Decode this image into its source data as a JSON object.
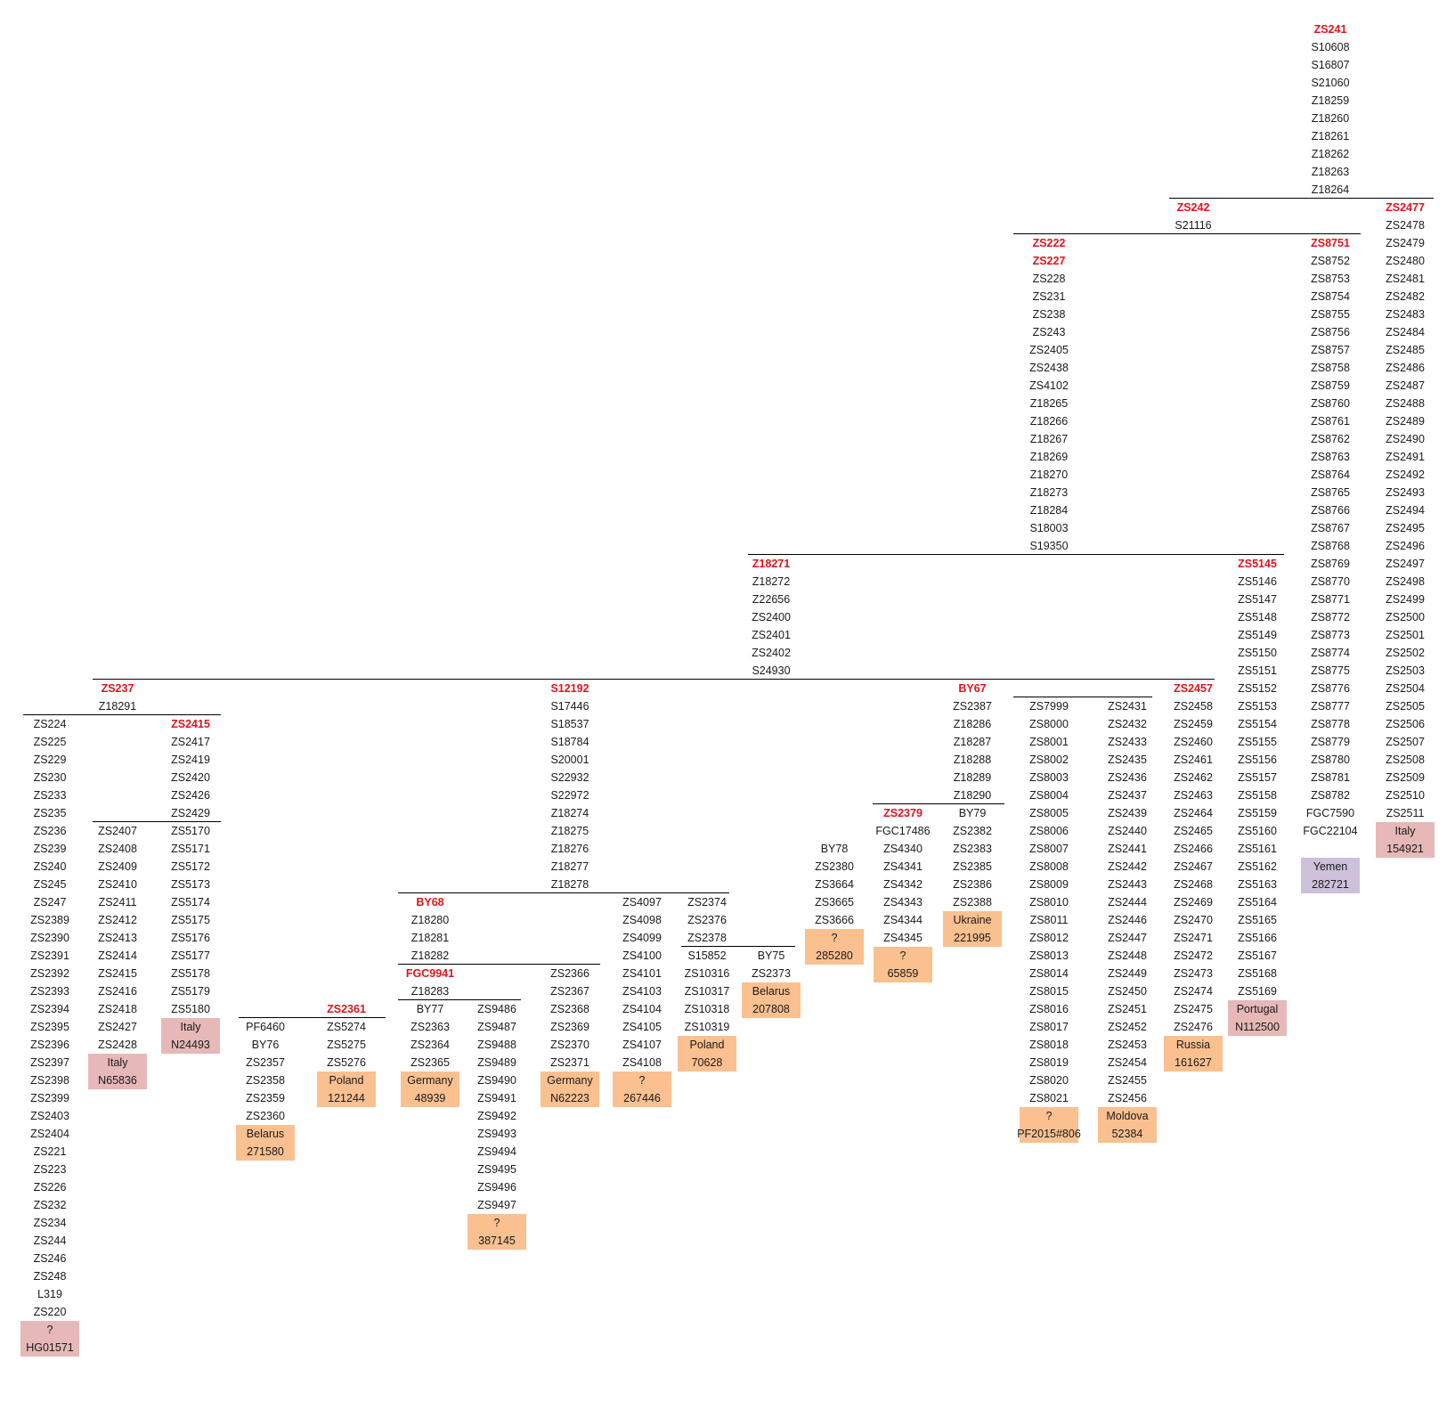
{
  "colors": {
    "heading": "#e0141c",
    "text": "#1a1a1a",
    "line": "#000000",
    "orange": "#fac090",
    "pink": "#e6b8b7",
    "purple": "#ccc0da"
  },
  "columns": [
    {
      "id": "zs241",
      "head": [
        "ZS241"
      ],
      "items": [
        "S10608",
        "S16807",
        "S21060",
        "Z18259",
        "Z18260",
        "Z18261",
        "Z18262",
        "Z18263",
        "Z18264"
      ]
    },
    {
      "id": "zs242",
      "head": [
        "ZS242"
      ],
      "items": [
        "S21116"
      ]
    },
    {
      "id": "zs2477",
      "head": [
        "ZS2477"
      ],
      "items": [
        "ZS2478",
        "ZS2479",
        "ZS2480",
        "ZS2481",
        "ZS2482",
        "ZS2483",
        "ZS2484",
        "ZS2485",
        "ZS2486",
        "ZS2487",
        "ZS2488",
        "ZS2489",
        "ZS2490",
        "ZS2491",
        "ZS2492",
        "ZS2493",
        "ZS2494",
        "ZS2495",
        "ZS2496",
        "ZS2497",
        "ZS2498",
        "ZS2499",
        "ZS2500",
        "ZS2501",
        "ZS2502",
        "ZS2503",
        "ZS2504",
        "ZS2505",
        "ZS2506",
        "ZS2507",
        "ZS2508",
        "ZS2509",
        "ZS2510",
        "ZS2511"
      ]
    },
    {
      "id": "zs222",
      "head": [
        "ZS222",
        "ZS227"
      ],
      "items": [
        "ZS228",
        "ZS231",
        "ZS238",
        "ZS243",
        "ZS2405",
        "ZS2438",
        "ZS4102",
        "Z18265",
        "Z18266",
        "Z18267",
        "Z18269",
        "Z18270",
        "Z18273",
        "Z18284",
        "S18003",
        "S19350"
      ]
    },
    {
      "id": "zs8751",
      "head": [
        "ZS8751"
      ],
      "items": [
        "ZS8752",
        "ZS8753",
        "ZS8754",
        "ZS8755",
        "ZS8756",
        "ZS8757",
        "ZS8758",
        "ZS8759",
        "ZS8760",
        "ZS8761",
        "ZS8762",
        "ZS8763",
        "ZS8764",
        "ZS8765",
        "ZS8766",
        "ZS8767",
        "ZS8768",
        "ZS8769",
        "ZS8770",
        "ZS8771",
        "ZS8772",
        "ZS8773",
        "ZS8774",
        "ZS8775",
        "ZS8776",
        "ZS8777",
        "ZS8778",
        "ZS8779",
        "ZS8780",
        "ZS8781",
        "ZS8782",
        "FGC7590",
        "FGC22104"
      ]
    },
    {
      "id": "z18271",
      "head": [
        "Z18271"
      ],
      "items": [
        "Z18272",
        "Z22656",
        "ZS2400",
        "ZS2401",
        "ZS2402",
        "S24930"
      ]
    },
    {
      "id": "zs5145",
      "head": [
        "ZS5145"
      ],
      "items": [
        "ZS5146",
        "ZS5147",
        "ZS5148",
        "ZS5149",
        "ZS5150",
        "ZS5151",
        "ZS5152",
        "ZS5153",
        "ZS5154",
        "ZS5155",
        "ZS5156",
        "ZS5157",
        "ZS5158",
        "ZS5159",
        "ZS5160",
        "ZS5161",
        "ZS5162",
        "ZS5163",
        "ZS5164",
        "ZS5165",
        "ZS5166",
        "ZS5167",
        "ZS5168",
        "ZS5169"
      ]
    },
    {
      "id": "zs237",
      "head": [
        "ZS237"
      ],
      "items": [
        "Z18291"
      ]
    },
    {
      "id": "s12192",
      "head": [
        "S12192"
      ],
      "items": [
        "S17446",
        "S18537",
        "S18784",
        "S20001",
        "S22932",
        "S22972",
        "Z18274",
        "Z18275",
        "Z18276",
        "Z18277",
        "Z18278"
      ]
    },
    {
      "id": "by67",
      "head": [
        "BY67"
      ],
      "items": [
        "ZS2387",
        "Z18286",
        "Z18287",
        "Z18288",
        "Z18289",
        "Z18290"
      ]
    },
    {
      "id": "zs2434a",
      "head": [],
      "items": [
        "ZS7999",
        "ZS8000",
        "ZS8001",
        "ZS8002",
        "ZS8003",
        "ZS8004",
        "ZS8005",
        "ZS8006",
        "ZS8007",
        "ZS8008",
        "ZS8009",
        "ZS8010",
        "ZS8011",
        "ZS8012",
        "ZS8013",
        "ZS8014",
        "ZS8015",
        "ZS8016",
        "ZS8017",
        "ZS8018",
        "ZS8019",
        "ZS8020",
        "ZS8021"
      ]
    },
    {
      "id": "zs2434b",
      "head": [],
      "items": [
        "ZS2431",
        "ZS2432",
        "ZS2433",
        "ZS2435",
        "ZS2436",
        "ZS2437",
        "ZS2439",
        "ZS2440",
        "ZS2441",
        "ZS2442",
        "ZS2443",
        "ZS2444",
        "ZS2446",
        "ZS2447",
        "ZS2448",
        "ZS2449",
        "ZS2450",
        "ZS2451",
        "ZS2452",
        "ZS2453",
        "ZS2454",
        "ZS2455",
        "ZS2456"
      ]
    },
    {
      "id": "zs2457",
      "head": [
        "ZS2457"
      ],
      "items": [
        "ZS2458",
        "ZS2459",
        "ZS2460",
        "ZS2461",
        "ZS2462",
        "ZS2463",
        "ZS2464",
        "ZS2465",
        "ZS2466",
        "ZS2467",
        "ZS2468",
        "ZS2469",
        "ZS2470",
        "ZS2471",
        "ZS2472",
        "ZS2473",
        "ZS2474",
        "ZS2475",
        "ZS2476"
      ]
    },
    {
      "id": "zs224",
      "head": [],
      "items": [
        "ZS224",
        "ZS225",
        "ZS229",
        "ZS230",
        "ZS233",
        "ZS235",
        "ZS236",
        "ZS239",
        "ZS240",
        "ZS245",
        "ZS247",
        "ZS2389",
        "ZS2390",
        "ZS2391",
        "ZS2392",
        "ZS2393",
        "ZS2394",
        "ZS2395",
        "ZS2396",
        "ZS2397",
        "ZS2398",
        "ZS2399",
        "ZS2403",
        "ZS2404",
        "ZS221",
        "ZS223",
        "ZS226",
        "ZS232",
        "ZS234",
        "ZS244",
        "ZS246",
        "ZS248",
        "L319",
        "ZS220"
      ]
    },
    {
      "id": "zs2415",
      "head": [
        "ZS2415"
      ],
      "items": [
        "ZS2417",
        "ZS2419",
        "ZS2420",
        "ZS2426",
        "ZS2429"
      ]
    },
    {
      "id": "zs2379",
      "head": [
        "ZS2379"
      ],
      "items": [
        "FGC17486"
      ]
    },
    {
      "id": "zs2407",
      "head": [],
      "items": [
        "ZS2407",
        "ZS2408",
        "ZS2409",
        "ZS2410",
        "ZS2411",
        "ZS2412",
        "ZS2413",
        "ZS2414",
        "ZS2415",
        "ZS2416",
        "ZS2418",
        "ZS2427",
        "ZS2428"
      ]
    },
    {
      "id": "zs5170",
      "head": [],
      "items": [
        "ZS5170",
        "ZS5171",
        "ZS5172",
        "ZS5173",
        "ZS5174",
        "ZS5175",
        "ZS5176",
        "ZS5177",
        "ZS5178",
        "ZS5179",
        "ZS5180"
      ]
    },
    {
      "id": "by79",
      "head": [],
      "items": [
        "BY79",
        "ZS2382",
        "ZS2383",
        "ZS2385",
        "ZS2386",
        "ZS2388"
      ]
    },
    {
      "id": "by78",
      "head": [],
      "items": [
        "BY78",
        "ZS2380",
        "ZS3664",
        "ZS3665",
        "ZS3666"
      ]
    },
    {
      "id": "zs4340",
      "head": [],
      "items": [
        "ZS4340",
        "ZS4341",
        "ZS4342",
        "ZS4343",
        "ZS4344",
        "ZS4345"
      ]
    },
    {
      "id": "by68",
      "head": [
        "BY68"
      ],
      "items": [
        "Z18280",
        "Z18281",
        "Z18282"
      ]
    },
    {
      "id": "zs4097",
      "head": [],
      "items": [
        "ZS4097",
        "ZS4098",
        "ZS4099",
        "ZS4100",
        "ZS4101",
        "ZS4103",
        "ZS4104",
        "ZS4105",
        "ZS4107",
        "ZS4108"
      ]
    },
    {
      "id": "zs2374",
      "head": [],
      "items": [
        "ZS2374",
        "ZS2376",
        "ZS2378"
      ]
    },
    {
      "id": "s15852",
      "head": [],
      "items": [
        "S15852",
        "ZS10316",
        "ZS10317",
        "ZS10318",
        "ZS10319"
      ]
    },
    {
      "id": "by75",
      "head": [],
      "items": [
        "BY75",
        "ZS2373"
      ]
    },
    {
      "id": "fgc9941",
      "head": [
        "FGC9941"
      ],
      "items": [
        "Z18283"
      ]
    },
    {
      "id": "zs2366",
      "head": [],
      "items": [
        "ZS2366",
        "ZS2367",
        "ZS2368",
        "ZS2369",
        "ZS2370",
        "ZS2371"
      ]
    },
    {
      "id": "zs2361",
      "head": [
        "ZS2361"
      ],
      "items": [
        "ZS5274",
        "ZS5275",
        "ZS5276"
      ]
    },
    {
      "id": "by77",
      "head": [],
      "items": [
        "BY77",
        "ZS2363",
        "ZS2364",
        "ZS2365"
      ]
    },
    {
      "id": "zs9486",
      "head": [],
      "items": [
        "ZS9486",
        "ZS9487",
        "ZS9488",
        "ZS9489",
        "ZS9490",
        "ZS9491",
        "ZS9492",
        "ZS9493",
        "ZS9494",
        "ZS9495",
        "ZS9496",
        "ZS9497"
      ]
    },
    {
      "id": "pf6460",
      "head": [],
      "items": [
        "PF6460",
        "BY76",
        "ZS2357",
        "ZS2358",
        "ZS2359",
        "ZS2360"
      ]
    }
  ],
  "samples": [
    {
      "id": "s-yemen",
      "color": "purple",
      "lines": [
        "Yemen",
        "282721"
      ]
    },
    {
      "id": "s-italy-154921",
      "color": "pink",
      "lines": [
        "Italy",
        "154921"
      ]
    },
    {
      "id": "s-portugal",
      "color": "pink",
      "lines": [
        "Portugal",
        "N112500"
      ]
    },
    {
      "id": "s-russia",
      "color": "orange",
      "lines": [
        "Russia",
        "161627"
      ]
    },
    {
      "id": "s-pf2015",
      "color": "orange",
      "lines": [
        "?",
        "PF2015#806"
      ]
    },
    {
      "id": "s-moldova",
      "color": "orange",
      "lines": [
        "Moldova",
        "52384"
      ]
    },
    {
      "id": "s-ukraine",
      "color": "orange",
      "lines": [
        "Ukraine",
        "221995"
      ]
    },
    {
      "id": "s-285280",
      "color": "orange",
      "lines": [
        "?",
        "285280"
      ]
    },
    {
      "id": "s-65859",
      "color": "orange",
      "lines": [
        "?",
        "65859"
      ]
    },
    {
      "id": "s-belarus-207808",
      "color": "orange",
      "lines": [
        "Belarus",
        "207808"
      ]
    },
    {
      "id": "s-poland-70628",
      "color": "orange",
      "lines": [
        "Poland",
        "70628"
      ]
    },
    {
      "id": "s-267446",
      "color": "orange",
      "lines": [
        "?",
        "267446"
      ]
    },
    {
      "id": "s-germany-n62223",
      "color": "orange",
      "lines": [
        "Germany",
        "N62223"
      ]
    },
    {
      "id": "s-germany-48939",
      "color": "orange",
      "lines": [
        "Germany",
        "48939"
      ]
    },
    {
      "id": "s-387145",
      "color": "orange",
      "lines": [
        "?",
        "387145"
      ]
    },
    {
      "id": "s-poland-121244",
      "color": "orange",
      "lines": [
        "Poland",
        "121244"
      ]
    },
    {
      "id": "s-belarus-271580",
      "color": "orange",
      "lines": [
        "Belarus",
        "271580"
      ]
    },
    {
      "id": "s-italy-n24493",
      "color": "pink",
      "lines": [
        "Italy",
        "N24493"
      ]
    },
    {
      "id": "s-italy-n65836",
      "color": "pink",
      "lines": [
        "Italy",
        "N65836"
      ]
    },
    {
      "id": "s-hg01571",
      "color": "pink",
      "lines": [
        "?",
        "HG01571"
      ]
    }
  ],
  "branches": [
    {
      "id": "zs241-split"
    },
    {
      "id": "zs242-split"
    },
    {
      "id": "zs222-split"
    },
    {
      "id": "z18271-split"
    },
    {
      "id": "zs237-split"
    },
    {
      "id": "zs2415-split"
    },
    {
      "id": "zs2415-sub"
    },
    {
      "id": "s12192-split"
    },
    {
      "id": "zs2379-split"
    },
    {
      "id": "zs2434-split"
    },
    {
      "id": "by68-split"
    },
    {
      "id": "fgc9941-split"
    },
    {
      "id": "zs2361-split"
    },
    {
      "id": "zs2374-split"
    }
  ]
}
